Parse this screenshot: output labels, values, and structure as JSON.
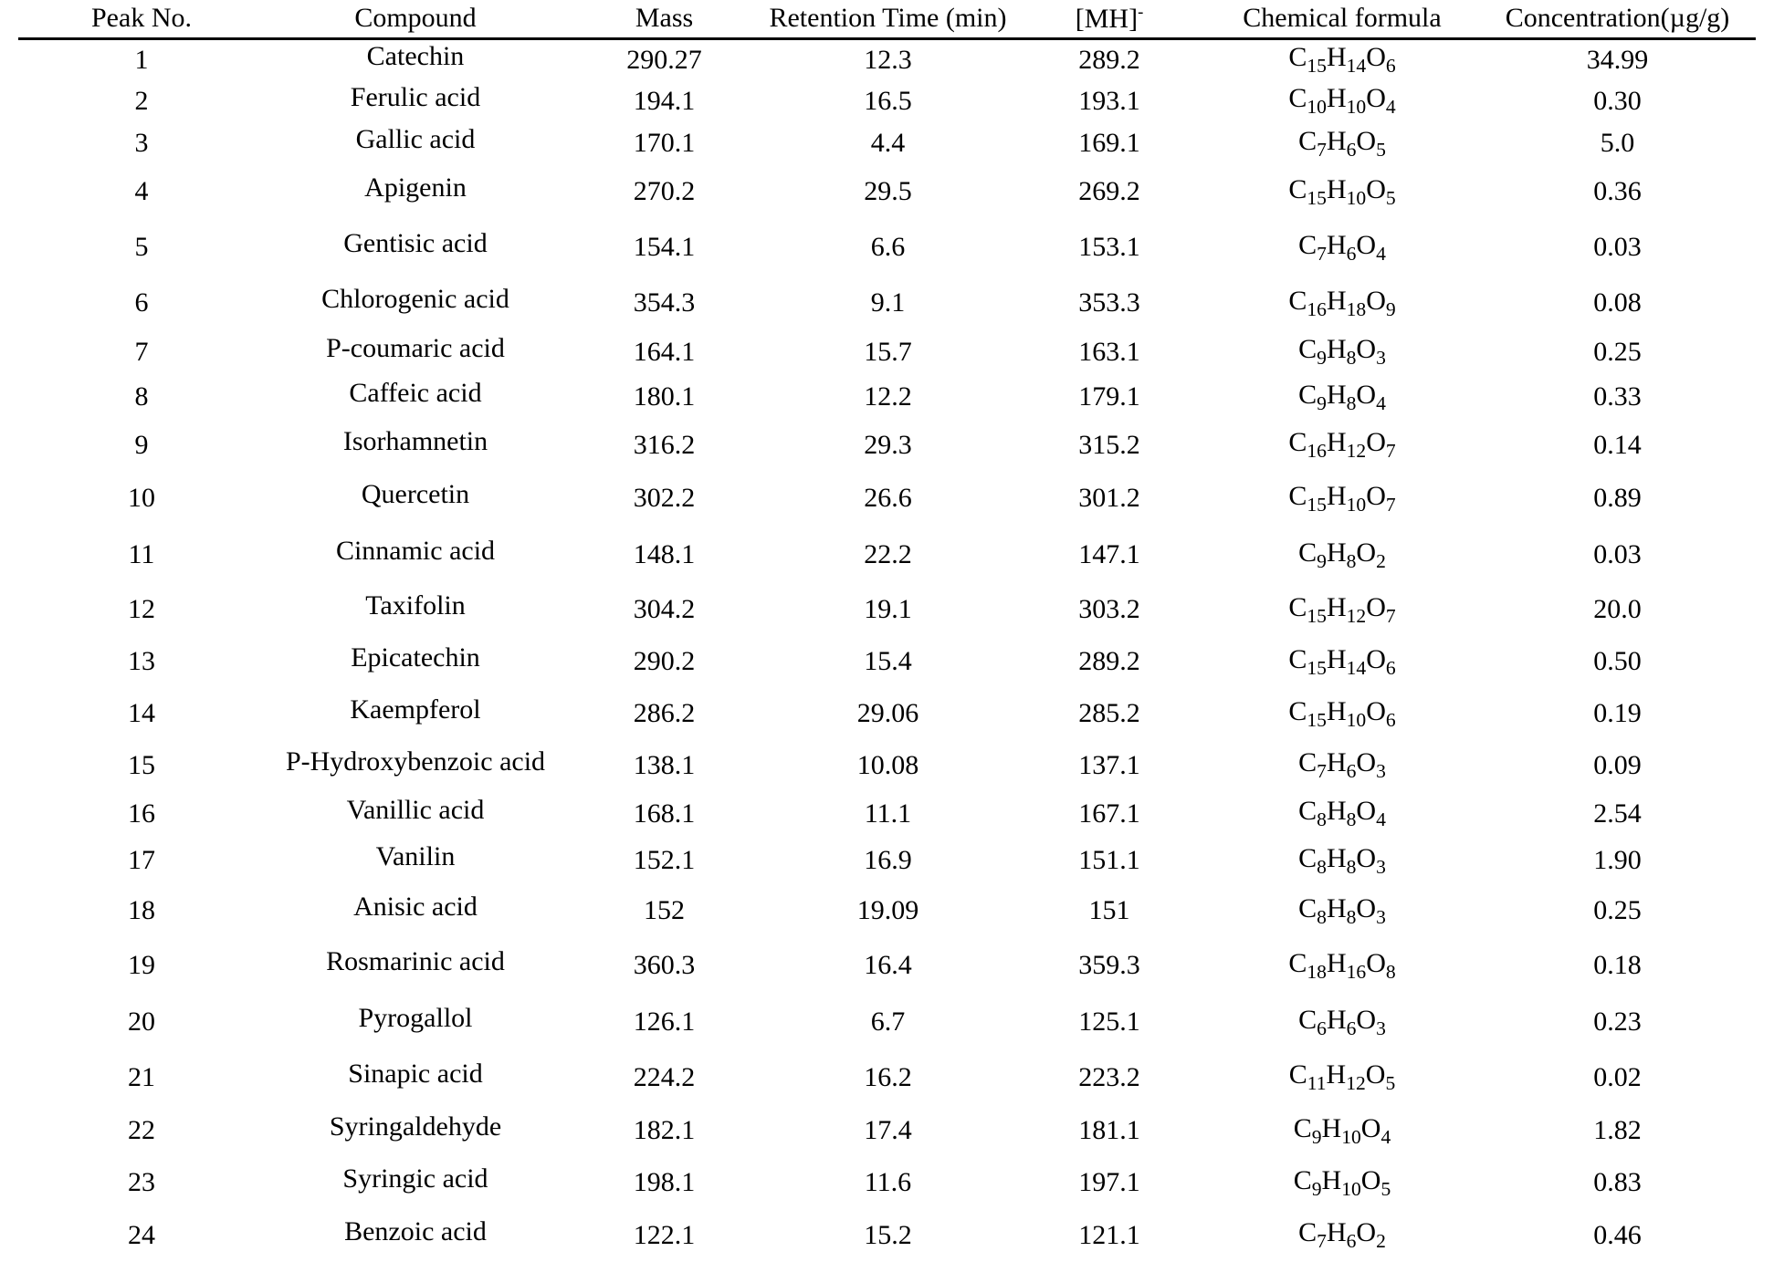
{
  "colors": {
    "text": "#000000",
    "background": "#ffffff",
    "header_rule": "#000000"
  },
  "table": {
    "columns": [
      {
        "key": "peak",
        "label": "Peak No."
      },
      {
        "key": "compound",
        "label": "Compound"
      },
      {
        "key": "mass",
        "label": "Mass"
      },
      {
        "key": "rt",
        "label": "Retention Time (min)"
      },
      {
        "key": "mh",
        "label": "[MH]",
        "sup": "-"
      },
      {
        "key": "formula",
        "label": "Chemical formula"
      },
      {
        "key": "conc",
        "label": "Concentration(µg/g)"
      }
    ],
    "rows": [
      {
        "peak": "1",
        "compound": "Catechin",
        "mass": "290.27",
        "rt": "12.3",
        "mh": "289.2",
        "formula": "C15H14O6",
        "conc": "34.99"
      },
      {
        "peak": "2",
        "compound": "Ferulic acid",
        "mass": "194.1",
        "rt": "16.5",
        "mh": "193.1",
        "formula": "C10H10O4",
        "conc": "0.30"
      },
      {
        "peak": "3",
        "compound": "Gallic acid",
        "mass": "170.1",
        "rt": "4.4",
        "mh": "169.1",
        "formula": "C7H6O5",
        "conc": "5.0"
      },
      {
        "peak": "4",
        "compound": "Apigenin",
        "mass": "270.2",
        "rt": "29.5",
        "mh": "269.2",
        "formula": "C15H10O5",
        "conc": "0.36"
      },
      {
        "peak": "5",
        "compound": "Gentisic acid",
        "mass": "154.1",
        "rt": "6.6",
        "mh": "153.1",
        "formula": "C7H6O4",
        "conc": "0.03"
      },
      {
        "peak": "6",
        "compound": "Chlorogenic acid",
        "mass": "354.3",
        "rt": "9.1",
        "mh": "353.3",
        "formula": "C16H18O9",
        "conc": "0.08"
      },
      {
        "peak": "7",
        "compound": "P-coumaric acid",
        "mass": "164.1",
        "rt": "15.7",
        "mh": "163.1",
        "formula": "C9H8O3",
        "conc": "0.25"
      },
      {
        "peak": "8",
        "compound": "Caffeic acid",
        "mass": "180.1",
        "rt": "12.2",
        "mh": "179.1",
        "formula": "C9H8O4",
        "conc": "0.33"
      },
      {
        "peak": "9",
        "compound": "Isorhamnetin",
        "mass": "316.2",
        "rt": "29.3",
        "mh": "315.2",
        "formula": "C16H12O7",
        "conc": "0.14"
      },
      {
        "peak": "10",
        "compound": "Quercetin",
        "mass": "302.2",
        "rt": "26.6",
        "mh": "301.2",
        "formula": "C15H10O7",
        "conc": "0.89"
      },
      {
        "peak": "11",
        "compound": "Cinnamic acid",
        "mass": "148.1",
        "rt": "22.2",
        "mh": "147.1",
        "formula": "C9H8O2",
        "conc": "0.03"
      },
      {
        "peak": "12",
        "compound": "Taxifolin",
        "mass": "304.2",
        "rt": "19.1",
        "mh": "303.2",
        "formula": "C15H12O7",
        "conc": "20.0"
      },
      {
        "peak": "13",
        "compound": "Epicatechin",
        "mass": "290.2",
        "rt": "15.4",
        "mh": "289.2",
        "formula": "C15H14O6",
        "conc": "0.50"
      },
      {
        "peak": "14",
        "compound": "Kaempferol",
        "mass": "286.2",
        "rt": "29.06",
        "mh": "285.2",
        "formula": "C15H10O6",
        "conc": "0.19"
      },
      {
        "peak": "15",
        "compound": "P-Hydroxybenzoic acid",
        "mass": "138.1",
        "rt": "10.08",
        "mh": "137.1",
        "formula": "C7H6O3",
        "conc": "0.09"
      },
      {
        "peak": "16",
        "compound": "Vanillic acid",
        "mass": "168.1",
        "rt": "11.1",
        "mh": "167.1",
        "formula": "C8H8O4",
        "conc": "2.54"
      },
      {
        "peak": "17",
        "compound": "Vanilin",
        "mass": "152.1",
        "rt": "16.9",
        "mh": "151.1",
        "formula": "C8H8O3",
        "conc": "1.90"
      },
      {
        "peak": "18",
        "compound": "Anisic acid",
        "mass": "152",
        "rt": "19.09",
        "mh": "151",
        "formula": "C8H8O3",
        "conc": "0.25"
      },
      {
        "peak": "19",
        "compound": "Rosmarinic acid",
        "mass": "360.3",
        "rt": "16.4",
        "mh": "359.3",
        "formula": "C18H16O8",
        "conc": "0.18"
      },
      {
        "peak": "20",
        "compound": "Pyrogallol",
        "mass": "126.1",
        "rt": "6.7",
        "mh": "125.1",
        "formula": "C6H6O3",
        "conc": "0.23"
      },
      {
        "peak": "21",
        "compound": "Sinapic acid",
        "mass": "224.2",
        "rt": "16.2",
        "mh": "223.2",
        "formula": "C11H12O5",
        "conc": "0.02"
      },
      {
        "peak": "22",
        "compound": "Syringaldehyde",
        "mass": "182.1",
        "rt": "17.4",
        "mh": "181.1",
        "formula": "C9H10O4",
        "conc": "1.82"
      },
      {
        "peak": "23",
        "compound": "Syringic acid",
        "mass": "198.1",
        "rt": "11.6",
        "mh": "197.1",
        "formula": "C9H10O5",
        "conc": "0.83"
      },
      {
        "peak": "24",
        "compound": "Benzoic acid",
        "mass": "122.1",
        "rt": "15.2",
        "mh": "121.1",
        "formula": "C7H6O2",
        "conc": "0.46"
      }
    ]
  }
}
